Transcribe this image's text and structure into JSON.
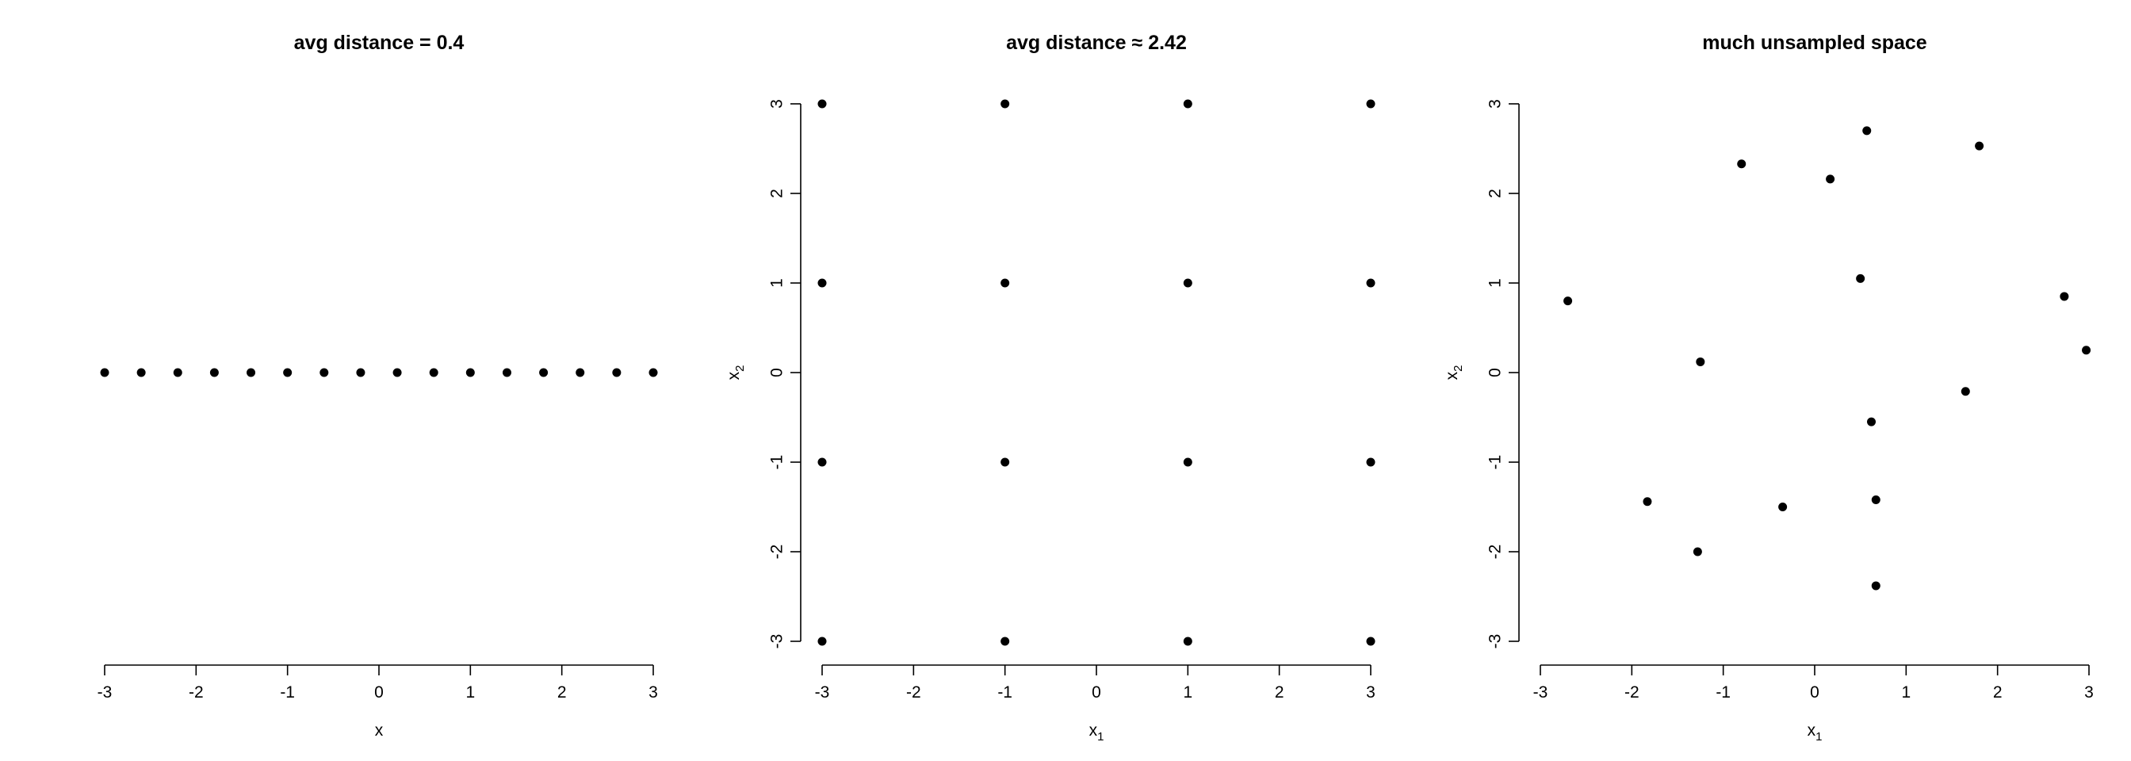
{
  "chart_data": [
    {
      "type": "scatter",
      "title": "avg distance = 0.4",
      "xlabel": "x",
      "ylabel": "",
      "xlim": [
        -3,
        3
      ],
      "ylim": [
        -3,
        3
      ],
      "xticks": [
        "-3",
        "-2",
        "-1",
        "0",
        "1",
        "2",
        "3"
      ],
      "yticks": [],
      "grid": false,
      "points": [
        {
          "x": -3.0,
          "y": 0
        },
        {
          "x": -2.6,
          "y": 0
        },
        {
          "x": -2.2,
          "y": 0
        },
        {
          "x": -1.8,
          "y": 0
        },
        {
          "x": -1.4,
          "y": 0
        },
        {
          "x": -1.0,
          "y": 0
        },
        {
          "x": -0.6,
          "y": 0
        },
        {
          "x": -0.2,
          "y": 0
        },
        {
          "x": 0.2,
          "y": 0
        },
        {
          "x": 0.6,
          "y": 0
        },
        {
          "x": 1.0,
          "y": 0
        },
        {
          "x": 1.4,
          "y": 0
        },
        {
          "x": 1.8,
          "y": 0
        },
        {
          "x": 2.2,
          "y": 0
        },
        {
          "x": 2.6,
          "y": 0
        },
        {
          "x": 3.0,
          "y": 0
        }
      ]
    },
    {
      "type": "scatter",
      "title": "avg distance ≈ 2.42",
      "xlabel": "x",
      "xlabel_sub": "1",
      "ylabel": "x",
      "ylabel_sub": "2",
      "xlim": [
        -3,
        3
      ],
      "ylim": [
        -3,
        3
      ],
      "xticks": [
        "-3",
        "-2",
        "-1",
        "0",
        "1",
        "2",
        "3"
      ],
      "yticks": [
        "-3",
        "-2",
        "-1",
        "0",
        "1",
        "2",
        "3"
      ],
      "grid": false,
      "points": [
        {
          "x": -3,
          "y": 3
        },
        {
          "x": -1,
          "y": 3
        },
        {
          "x": 1,
          "y": 3
        },
        {
          "x": 3,
          "y": 3
        },
        {
          "x": -3,
          "y": 1
        },
        {
          "x": -1,
          "y": 1
        },
        {
          "x": 1,
          "y": 1
        },
        {
          "x": 3,
          "y": 1
        },
        {
          "x": -3,
          "y": -1
        },
        {
          "x": -1,
          "y": -1
        },
        {
          "x": 1,
          "y": -1
        },
        {
          "x": 3,
          "y": -1
        },
        {
          "x": -3,
          "y": -3
        },
        {
          "x": -1,
          "y": -3
        },
        {
          "x": 1,
          "y": -3
        },
        {
          "x": 3,
          "y": -3
        }
      ]
    },
    {
      "type": "scatter",
      "title": "much unsampled space",
      "xlabel": "x",
      "xlabel_sub": "1",
      "ylabel": "x",
      "ylabel_sub": "2",
      "xlim": [
        -3,
        3
      ],
      "ylim": [
        -3,
        3
      ],
      "xticks": [
        "-3",
        "-2",
        "-1",
        "0",
        "1",
        "2",
        "3"
      ],
      "yticks": [
        "-3",
        "-2",
        "-1",
        "0",
        "1",
        "2",
        "3"
      ],
      "grid": false,
      "points": [
        {
          "x": -2.7,
          "y": 0.8
        },
        {
          "x": -1.83,
          "y": -1.44
        },
        {
          "x": -1.28,
          "y": -2.0
        },
        {
          "x": -1.25,
          "y": 0.12
        },
        {
          "x": -0.8,
          "y": 2.33
        },
        {
          "x": -0.35,
          "y": -1.5
        },
        {
          "x": 0.17,
          "y": 2.16
        },
        {
          "x": 0.5,
          "y": 1.05
        },
        {
          "x": 0.57,
          "y": 2.7
        },
        {
          "x": 0.62,
          "y": -0.55
        },
        {
          "x": 0.67,
          "y": -1.42
        },
        {
          "x": 0.67,
          "y": -2.38
        },
        {
          "x": 1.65,
          "y": -0.21
        },
        {
          "x": 1.8,
          "y": 2.53
        },
        {
          "x": 2.73,
          "y": 0.85
        },
        {
          "x": 2.97,
          "y": 0.25
        }
      ]
    }
  ]
}
